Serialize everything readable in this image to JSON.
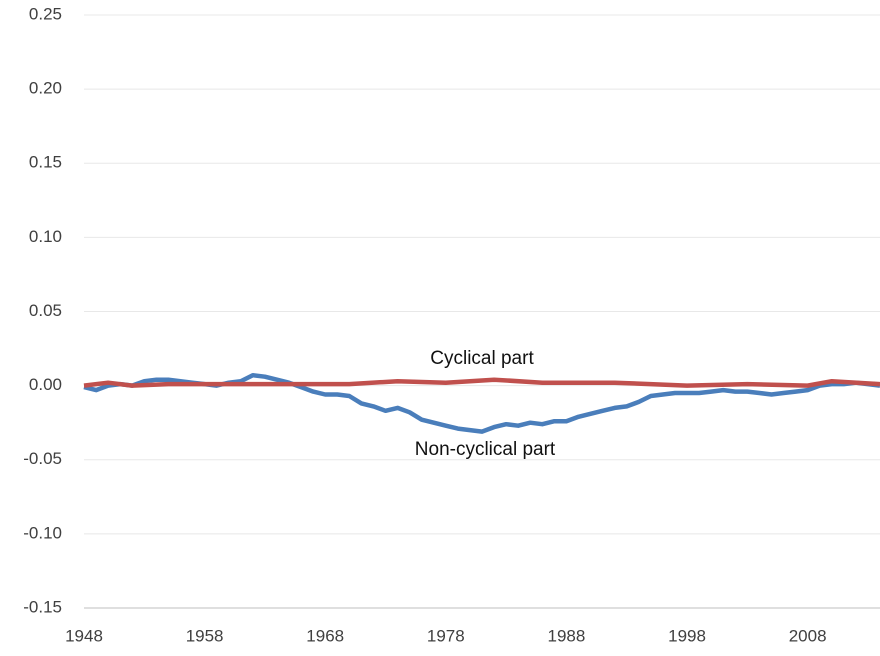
{
  "chart_data": {
    "type": "line",
    "annotations": [
      "Cyclical part",
      "Non-cyclical part"
    ],
    "xlim": [
      1948,
      2014
    ],
    "xticks": [
      1948,
      1958,
      1968,
      1978,
      1988,
      1998,
      2008
    ],
    "ylim": [
      -0.15,
      0.25
    ],
    "yticks": [
      -0.15,
      {
        "value": -0.1,
        "label": "-0.10"
      },
      -0.05,
      {
        "value": 0,
        "label": "0.00"
      },
      0.05,
      {
        "value": 0.1,
        "label": "0.10"
      },
      0.15,
      {
        "value": 0.2,
        "label": "0.20"
      },
      0.25
    ],
    "grid": true,
    "series": [
      {
        "name": "Non-cyclical part",
        "color": "#4a7ebb",
        "x": [
          1948,
          1949,
          1950,
          1951,
          1952,
          1953,
          1954,
          1955,
          1956,
          1957,
          1958,
          1959,
          1960,
          1961,
          1962,
          1963,
          1964,
          1965,
          1966,
          1967,
          1968,
          1969,
          1970,
          1971,
          1972,
          1973,
          1974,
          1975,
          1976,
          1977,
          1978,
          1979,
          1980,
          1981,
          1982,
          1983,
          1984,
          1985,
          1986,
          1987,
          1988,
          1989,
          1990,
          1991,
          1992,
          1993,
          1994,
          1995,
          1996,
          1997,
          1998,
          1999,
          2000,
          2001,
          2002,
          2003,
          2004,
          2005,
          2006,
          2007,
          2008,
          2009,
          2010,
          2011,
          2012,
          2013,
          2014
        ],
        "values": [
          -0.001,
          -0.003,
          0.0,
          0.001,
          0.0,
          0.003,
          0.004,
          0.004,
          0.003,
          0.002,
          0.001,
          0.0,
          0.002,
          0.003,
          0.007,
          0.006,
          0.004,
          0.002,
          -0.001,
          -0.004,
          -0.006,
          -0.006,
          -0.007,
          -0.012,
          -0.014,
          -0.017,
          -0.015,
          -0.018,
          -0.023,
          -0.025,
          -0.027,
          -0.029,
          -0.03,
          -0.031,
          -0.028,
          -0.026,
          -0.027,
          -0.025,
          -0.026,
          -0.024,
          -0.024,
          -0.021,
          -0.019,
          -0.017,
          -0.015,
          -0.014,
          -0.011,
          -0.007,
          -0.006,
          -0.005,
          -0.005,
          -0.005,
          -0.004,
          -0.003,
          -0.004,
          -0.004,
          -0.005,
          -0.006,
          -0.005,
          -0.004,
          -0.003,
          0.0,
          0.001,
          0.001,
          0.002,
          0.001,
          0.0
        ]
      },
      {
        "name": "Cyclical part",
        "color": "#c0504d",
        "x": [
          1948,
          1950,
          1952,
          1955,
          1960,
          1965,
          1970,
          1974,
          1978,
          1982,
          1986,
          1992,
          1998,
          2003,
          2008,
          2010,
          2014
        ],
        "values": [
          0.0,
          0.002,
          0.0,
          0.001,
          0.001,
          0.001,
          0.001,
          0.003,
          0.002,
          0.004,
          0.002,
          0.002,
          0.0,
          0.001,
          0.0,
          0.003,
          0.001
        ]
      }
    ]
  }
}
